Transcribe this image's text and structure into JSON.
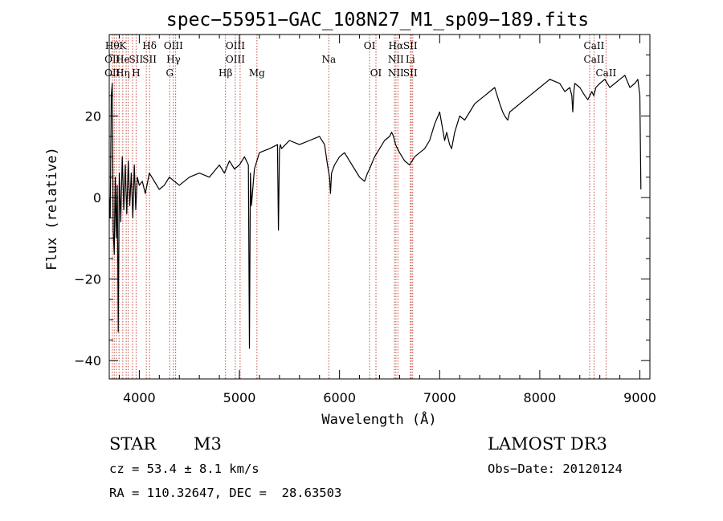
{
  "chart_data": {
    "type": "line",
    "title": "spec−55951−GAC_108N27_M1_sp09−189.fits",
    "xlabel": "Wavelength (Å)",
    "ylabel": "Flux (relative)",
    "xlim": [
      3700,
      9100
    ],
    "ylim": [
      -44.5,
      40
    ],
    "xticks": [
      {
        "value": 4000,
        "label": "4000"
      },
      {
        "value": 5000,
        "label": "5000"
      },
      {
        "value": 6000,
        "label": "6000"
      },
      {
        "value": 7000,
        "label": "7000"
      },
      {
        "value": 8000,
        "label": "8000"
      },
      {
        "value": 9000,
        "label": "9000"
      }
    ],
    "yticks": [
      {
        "value": -40,
        "label": "−40"
      },
      {
        "value": -20,
        "label": "−20"
      },
      {
        "value": 0,
        "label": "0"
      },
      {
        "value": 20,
        "label": "20"
      }
    ],
    "grid": false,
    "series": [
      {
        "name": "flux",
        "x": [
          3700,
          3710,
          3720,
          3730,
          3740,
          3750,
          3760,
          3770,
          3780,
          3790,
          3800,
          3815,
          3830,
          3845,
          3860,
          3875,
          3890,
          3905,
          3920,
          3935,
          3950,
          3965,
          3980,
          4000,
          4030,
          4060,
          4100,
          4150,
          4200,
          4250,
          4300,
          4350,
          4400,
          4450,
          4500,
          4600,
          4700,
          4800,
          4850,
          4900,
          4950,
          5000,
          5050,
          5090,
          5100,
          5110,
          5120,
          5150,
          5200,
          5300,
          5380,
          5390,
          5400,
          5410,
          5420,
          5500,
          5600,
          5700,
          5800,
          5850,
          5880,
          5900,
          5910,
          5920,
          5950,
          6000,
          6050,
          6100,
          6150,
          6200,
          6250,
          6280,
          6300,
          6350,
          6400,
          6450,
          6500,
          6520,
          6540,
          6560,
          6580,
          6600,
          6650,
          6700,
          6750,
          6800,
          6850,
          6900,
          6950,
          7000,
          7050,
          7070,
          7100,
          7120,
          7150,
          7200,
          7250,
          7300,
          7350,
          7400,
          7450,
          7500,
          7550,
          7600,
          7630,
          7650,
          7680,
          7700,
          7750,
          7800,
          7850,
          7900,
          8000,
          8100,
          8200,
          8250,
          8300,
          8320,
          8330,
          8340,
          8350,
          8400,
          8450,
          8480,
          8500,
          8520,
          8540,
          8560,
          8600,
          8650,
          8700,
          8750,
          8800,
          8850,
          8900,
          8950,
          8980,
          9000,
          9010
        ],
        "y": [
          0,
          -5,
          25,
          28,
          -8,
          -14,
          5,
          -10,
          3,
          -33,
          6,
          -6,
          10,
          -3,
          8,
          -4,
          9,
          -2,
          6,
          -5,
          8,
          -3,
          5,
          3,
          4,
          1,
          6,
          4,
          2,
          3,
          5,
          4,
          3,
          4,
          5,
          6,
          5,
          8,
          6,
          9,
          7,
          8,
          10,
          8,
          -37,
          6,
          -2,
          7,
          11,
          12,
          13,
          -8,
          12,
          13,
          12,
          14,
          13,
          14,
          15,
          13,
          8,
          5,
          1,
          6,
          8,
          10,
          11,
          9,
          7,
          5,
          4,
          6,
          7,
          10,
          12,
          14,
          15,
          16,
          15,
          13,
          12,
          11,
          9,
          8,
          10,
          11,
          12,
          14,
          18,
          21,
          14,
          16,
          13,
          12,
          16,
          20,
          19,
          21,
          23,
          24,
          25,
          26,
          27,
          23,
          21,
          20,
          19,
          21,
          22,
          23,
          24,
          25,
          27,
          29,
          28,
          26,
          27,
          25,
          21,
          26,
          28,
          27,
          25,
          24,
          25,
          26,
          25,
          27,
          28,
          29,
          27,
          28,
          29,
          30,
          27,
          28,
          29,
          25,
          2
        ]
      }
    ],
    "lines": [
      {
        "x": 3730,
        "top": "Hθ",
        "mid": "OII",
        "low": "OII"
      },
      {
        "x": 3750
      },
      {
        "x": 3771
      },
      {
        "x": 3798
      },
      {
        "x": 3835,
        "top": "K",
        "mid": "He",
        "low": "Hη"
      },
      {
        "x": 3869
      },
      {
        "x": 3889
      },
      {
        "x": 3933
      },
      {
        "x": 3968,
        "mid": "SII",
        "low": "H"
      },
      {
        "x": 4070
      },
      {
        "x": 4102,
        "top": "Hδ",
        "mid": "SII"
      },
      {
        "x": 4304,
        "low": "G"
      },
      {
        "x": 4341,
        "top": "OIII",
        "mid": "Hγ"
      },
      {
        "x": 4363
      },
      {
        "x": 4861,
        "low": "Hβ"
      },
      {
        "x": 4959,
        "top": "OIII",
        "mid": "OIII"
      },
      {
        "x": 5007
      },
      {
        "x": 5175,
        "low": "Mg"
      },
      {
        "x": 5893,
        "mid": "Na"
      },
      {
        "x": 6300,
        "top": "OI"
      },
      {
        "x": 6364,
        "low": "OI"
      },
      {
        "x": 6548
      },
      {
        "x": 6563,
        "top": "Hα",
        "mid": "NII",
        "low": "NII"
      },
      {
        "x": 6583
      },
      {
        "x": 6707,
        "top": "SII",
        "mid": "Li",
        "low": "SII"
      },
      {
        "x": 6717
      },
      {
        "x": 6731
      },
      {
        "x": 8498
      },
      {
        "x": 8542,
        "top": "CaII",
        "mid": "CaII"
      },
      {
        "x": 8662,
        "low": "CaII"
      }
    ]
  },
  "footer": {
    "object_type": "STAR",
    "subclass": "M3",
    "survey": "LAMOST DR3",
    "redshift": "cz = 53.4 ± 8.1 km/s",
    "obs_date": "Obs−Date: 20120124",
    "coords": "RA = 110.32647, DEC =  28.63503"
  }
}
